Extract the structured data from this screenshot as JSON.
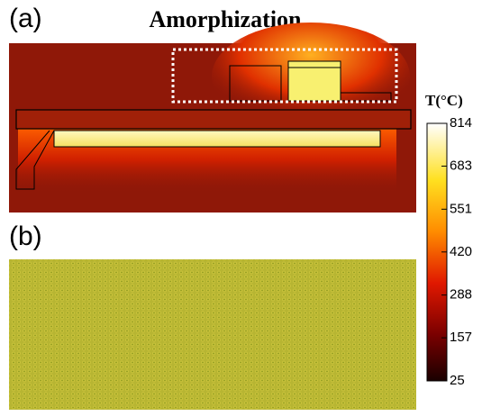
{
  "title": "Amorphization",
  "panels": [
    {
      "label": "(a)"
    },
    {
      "label": "(b)"
    }
  ],
  "colorbar": {
    "title": "T(°C)",
    "lim": [
      25,
      814
    ],
    "ticks": [
      25,
      157,
      288,
      420,
      551,
      683,
      814
    ]
  }
}
